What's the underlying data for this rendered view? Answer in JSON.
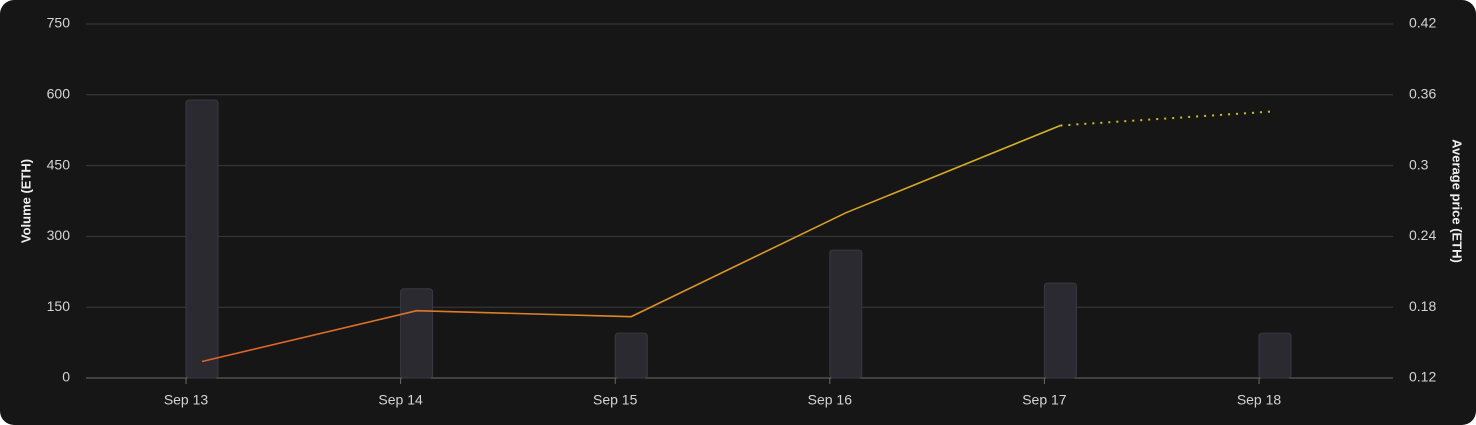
{
  "chart_data": {
    "type": "bar-line",
    "y_label": "Volume (ETH)",
    "y2_label": "Average price (ETH)",
    "categories": [
      "Sep 13",
      "Sep 14",
      "Sep 15",
      "Sep 16",
      "Sep 17",
      "Sep 18"
    ],
    "ylim": [
      0,
      750
    ],
    "yticks": [
      0,
      150,
      300,
      450,
      600,
      750
    ],
    "y2lim": [
      0.12,
      0.42
    ],
    "y2ticks": [
      0.12,
      0.18,
      0.24,
      0.3,
      0.36,
      0.42
    ],
    "grid": true,
    "series": [
      {
        "type": "bar",
        "color": "#2b2a31",
        "values": [
          589,
          189,
          95,
          271,
          201,
          95
        ]
      },
      {
        "type": "line",
        "axis": "y2",
        "color": [
          "#e0602a",
          "#d6b624"
        ],
        "values": [
          0.134,
          0.177,
          0.172,
          0.26,
          0.334,
          null
        ]
      },
      {
        "type": "line",
        "axis": "y2",
        "dotted": true,
        "color": "#c9c21e",
        "values": [
          null,
          null,
          null,
          null,
          0.334,
          0.346
        ]
      }
    ]
  }
}
